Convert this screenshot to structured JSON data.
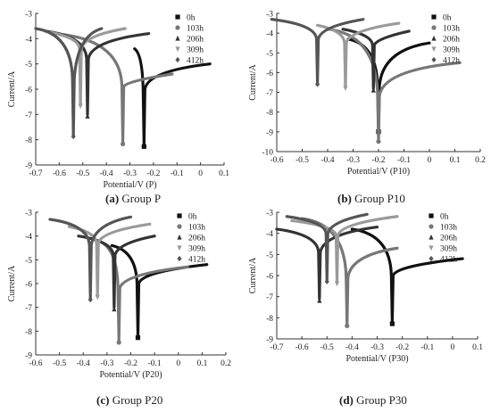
{
  "figure": {
    "legend_labels": [
      "0h",
      "103h",
      "206h",
      "309h",
      "412h"
    ],
    "series_colors": [
      "#111111",
      "#777777",
      "#333333",
      "#9a9a9a",
      "#555555"
    ]
  },
  "chart_data": [
    {
      "type": "line",
      "panel_letter": "(a)",
      "caption": "Group P",
      "xlabel": "Potential/V (P)",
      "ylabel": "Current/A",
      "xlim": [
        -0.7,
        0.1
      ],
      "ylim": [
        -9,
        -3
      ],
      "xticks": [
        -0.7,
        -0.6,
        -0.5,
        -0.4,
        -0.3,
        -0.2,
        -0.1,
        0,
        0.1
      ],
      "yticks": [
        -3,
        -4,
        -5,
        -6,
        -7,
        -8,
        -9
      ],
      "legend": "top-right",
      "series": [
        {
          "name": "0h",
          "ecorr": -0.24,
          "imin": -8.2,
          "left": [
            -0.28,
            -4.4
          ],
          "right": [
            0.04,
            -5.0
          ]
        },
        {
          "name": "103h",
          "ecorr": -0.33,
          "imin": -8.1,
          "left": [
            -0.62,
            -3.8
          ],
          "right": [
            -0.12,
            -5.4
          ]
        },
        {
          "name": "206h",
          "ecorr": -0.48,
          "imin": -7.0,
          "left": [
            -0.66,
            -3.7
          ],
          "right": [
            -0.22,
            -3.8
          ]
        },
        {
          "name": "309h",
          "ecorr": -0.51,
          "imin": -6.6,
          "left": [
            -0.64,
            -3.75
          ],
          "right": [
            -0.32,
            -3.6
          ]
        },
        {
          "name": "412h",
          "ecorr": -0.54,
          "imin": -7.8,
          "left": [
            -0.7,
            -3.6
          ],
          "right": [
            -0.42,
            -3.6
          ]
        }
      ]
    },
    {
      "type": "line",
      "panel_letter": "(b)",
      "caption": "Group P10",
      "xlabel": "Potential/V (P10)",
      "ylabel": "Current/A",
      "xlim": [
        -0.6,
        0.2
      ],
      "ylim": [
        -10,
        -3
      ],
      "xticks": [
        -0.6,
        -0.5,
        -0.4,
        -0.3,
        -0.2,
        -0.1,
        0,
        0.1,
        0.2
      ],
      "yticks": [
        -3,
        -4,
        -5,
        -6,
        -7,
        -8,
        -9,
        -10
      ],
      "legend": "top-right",
      "series": [
        {
          "name": "0h",
          "ecorr": -0.2,
          "imin": -8.9,
          "left": [
            -0.32,
            -4.3
          ],
          "right": [
            0.0,
            -4.5
          ]
        },
        {
          "name": "103h",
          "ecorr": -0.2,
          "imin": -9.4,
          "left": [
            -0.4,
            -3.8
          ],
          "right": [
            0.12,
            -5.5
          ]
        },
        {
          "name": "206h",
          "ecorr": -0.22,
          "imin": -6.8,
          "left": [
            -0.34,
            -3.8
          ],
          "right": [
            -0.08,
            -3.9
          ]
        },
        {
          "name": "309h",
          "ecorr": -0.33,
          "imin": -6.7,
          "left": [
            -0.44,
            -3.6
          ],
          "right": [
            -0.12,
            -3.5
          ]
        },
        {
          "name": "412h",
          "ecorr": -0.44,
          "imin": -6.5,
          "left": [
            -0.62,
            -3.3
          ],
          "right": [
            -0.26,
            -3.3
          ]
        }
      ]
    },
    {
      "type": "line",
      "panel_letter": "(c)",
      "caption": "Group P20",
      "xlabel": "Potential/V (P20)",
      "ylabel": "Current/A",
      "xlim": [
        -0.6,
        0.2
      ],
      "ylim": [
        -9,
        -3
      ],
      "xticks": [
        -0.6,
        -0.5,
        -0.4,
        -0.3,
        -0.2,
        -0.1,
        0,
        0.1,
        0.2
      ],
      "yticks": [
        -3,
        -4,
        -5,
        -6,
        -7,
        -8,
        -9
      ],
      "legend": "top-right",
      "series": [
        {
          "name": "0h",
          "ecorr": -0.17,
          "imin": -8.2,
          "left": [
            -0.28,
            -4.4
          ],
          "right": [
            0.12,
            -5.2
          ]
        },
        {
          "name": "103h",
          "ecorr": -0.25,
          "imin": -8.4,
          "left": [
            -0.34,
            -4.2
          ],
          "right": [
            0.04,
            -5.3
          ]
        },
        {
          "name": "206h",
          "ecorr": -0.27,
          "imin": -7.0,
          "left": [
            -0.42,
            -4.0
          ],
          "right": [
            -0.1,
            -4.0
          ]
        },
        {
          "name": "309h",
          "ecorr": -0.34,
          "imin": -6.5,
          "left": [
            -0.46,
            -3.6
          ],
          "right": [
            -0.12,
            -3.5
          ]
        },
        {
          "name": "412h",
          "ecorr": -0.37,
          "imin": -6.6,
          "left": [
            -0.54,
            -3.3
          ],
          "right": [
            -0.2,
            -3.2
          ]
        }
      ]
    },
    {
      "type": "line",
      "panel_letter": "(d)",
      "caption": "Group P30",
      "xlabel": "Potential/V (P30)",
      "ylabel": "Current/A",
      "xlim": [
        -0.7,
        0.1
      ],
      "ylim": [
        -9,
        -3
      ],
      "xticks": [
        -0.7,
        -0.6,
        -0.5,
        -0.4,
        -0.3,
        -0.2,
        -0.1,
        0,
        0.1
      ],
      "yticks": [
        -3,
        -4,
        -5,
        -6,
        -7,
        -8,
        -9
      ],
      "legend": "top-right",
      "series": [
        {
          "name": "0h",
          "ecorr": -0.24,
          "imin": -8.2,
          "left": [
            -0.4,
            -3.8
          ],
          "right": [
            0.04,
            -5.2
          ]
        },
        {
          "name": "103h",
          "ecorr": -0.42,
          "imin": -8.3,
          "left": [
            -0.6,
            -3.3
          ],
          "right": [
            -0.22,
            -4.7
          ]
        },
        {
          "name": "206h",
          "ecorr": -0.53,
          "imin": -7.1,
          "left": [
            -0.7,
            -3.8
          ],
          "right": [
            -0.3,
            -3.7
          ]
        },
        {
          "name": "309h",
          "ecorr": -0.46,
          "imin": -6.3,
          "left": [
            -0.64,
            -3.4
          ],
          "right": [
            -0.22,
            -3.2
          ]
        },
        {
          "name": "412h",
          "ecorr": -0.5,
          "imin": -6.2,
          "left": [
            -0.66,
            -3.2
          ],
          "right": [
            -0.34,
            -3.1
          ]
        }
      ]
    }
  ]
}
